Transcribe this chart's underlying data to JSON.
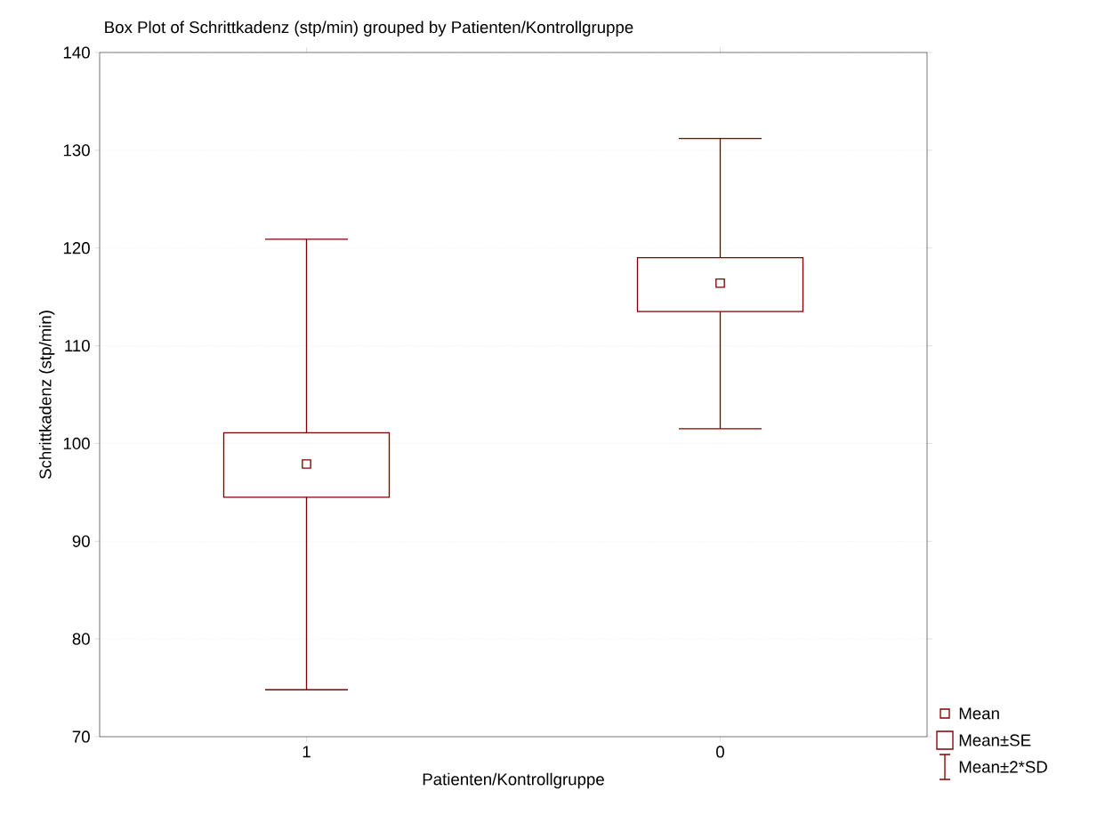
{
  "chart_data": {
    "type": "box",
    "title": "Box Plot of Schrittkadenz (stp/min) grouped by  Patienten/Kontrollgruppe",
    "xlabel": "Patienten/Kontrollgruppe",
    "ylabel": "Schrittkadenz (stp/min)",
    "categories": [
      "1",
      "0"
    ],
    "series": [
      {
        "color": "#800000",
        "boxes": [
          {
            "low": 74.8,
            "q1": 94.5,
            "median": 97.9,
            "q3": 101.1,
            "high": 120.9
          },
          {
            "low": 101.5,
            "q1": 113.5,
            "median": 116.4,
            "q3": 119.0,
            "high": 131.2
          }
        ]
      }
    ],
    "ylim": [
      70,
      140
    ],
    "yticks": [
      70,
      80,
      90,
      100,
      110,
      120,
      130,
      140
    ],
    "grid": "y",
    "annotations": [
      "Mean",
      "Mean±SE",
      "Mean±2*SD"
    ]
  }
}
